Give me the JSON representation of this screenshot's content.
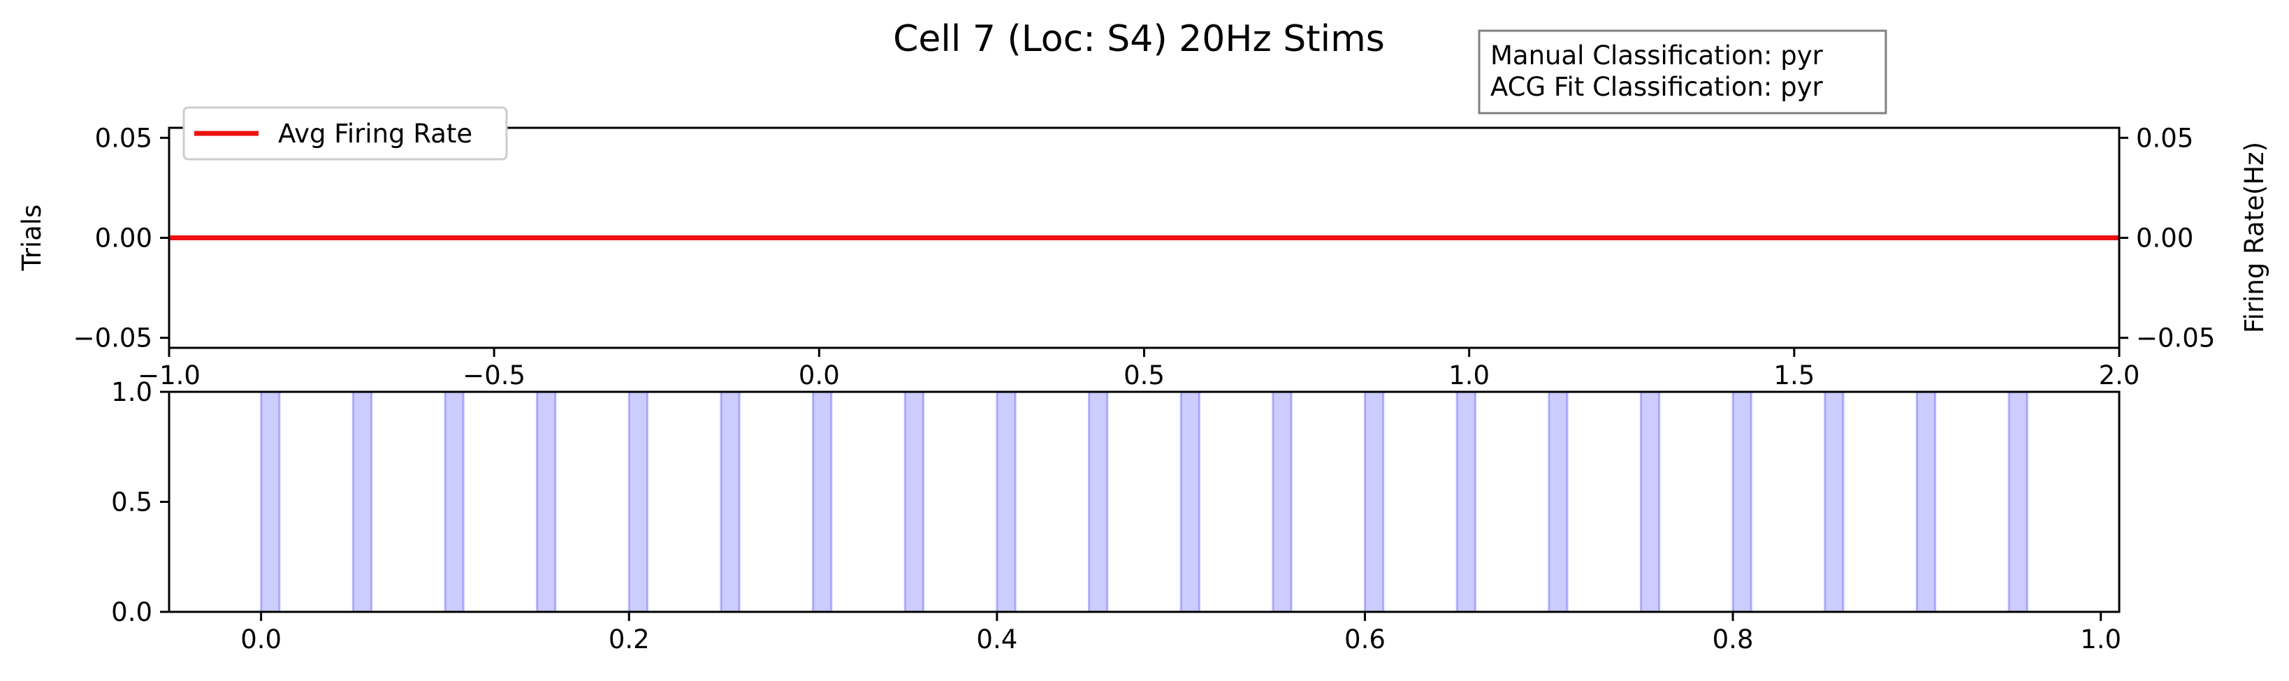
{
  "figure": {
    "title": "Cell 7 (Loc: S4) 20Hz Stims",
    "classification_box": {
      "line1": "Manual Classification: pyr",
      "line2": "ACG Fit Classification: pyr"
    }
  },
  "chart_data": [
    {
      "type": "line",
      "ylabel_left": "Trials",
      "ylabel_right": "Firing Rate(Hz)",
      "xlim": [
        -1.0,
        2.0
      ],
      "ylim": [
        -0.055,
        0.055
      ],
      "xticks": [
        -1.0,
        -0.5,
        0.0,
        0.5,
        1.0,
        1.5,
        2.0
      ],
      "xtick_labels": [
        "−1.0",
        "−0.5",
        "0.0",
        "0.5",
        "1.0",
        "1.5",
        "2.0"
      ],
      "yticks": [
        -0.05,
        0.0,
        0.05
      ],
      "ytick_labels": [
        "−0.05",
        "0.00",
        "0.05"
      ],
      "legend": {
        "label": "Avg Firing Rate",
        "placement": "upper-left"
      },
      "series": [
        {
          "name": "Avg Firing Rate",
          "color": "#ee1111",
          "x": [
            -1.0,
            2.0
          ],
          "y": [
            0.0,
            0.0
          ]
        }
      ],
      "grid": false
    },
    {
      "type": "bar",
      "xlim": [
        -0.05,
        1.01
      ],
      "ylim": [
        0.0,
        1.0
      ],
      "xticks": [
        0.0,
        0.2,
        0.4,
        0.6,
        0.8,
        1.0
      ],
      "xtick_labels": [
        "0.0",
        "0.2",
        "0.4",
        "0.6",
        "0.8",
        "1.0"
      ],
      "yticks": [
        0.0,
        0.5,
        1.0
      ],
      "ytick_labels": [
        "0.0",
        "0.5",
        "1.0"
      ],
      "stim_color": "#0000ff",
      "stim_width": 0.01,
      "stim_onsets": [
        0.0,
        0.05,
        0.1,
        0.15,
        0.2,
        0.25,
        0.3,
        0.35,
        0.4,
        0.45,
        0.5,
        0.55,
        0.6,
        0.65,
        0.7,
        0.75,
        0.8,
        0.85,
        0.9,
        0.95
      ],
      "grid": false
    }
  ]
}
